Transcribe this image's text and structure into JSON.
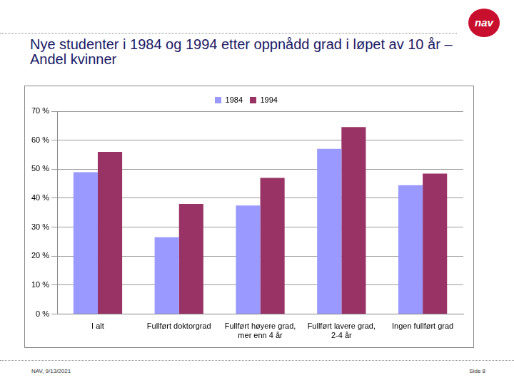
{
  "chart_data": {
    "type": "bar",
    "title": "Nye studenter i 1984 og 1994 etter oppnådd grad i løpet av 10 år – Andel kvinner",
    "categories": [
      "I alt",
      "Fullført doktorgrad",
      "Fullført høyere grad, mer enn 4 år",
      "Fullført lavere grad, 2-4 år",
      "Ingen fullført grad"
    ],
    "series": [
      {
        "name": "1984",
        "color": "#9999ff",
        "values": [
          49,
          26.5,
          37.5,
          57,
          44.5
        ]
      },
      {
        "name": "1994",
        "color": "#993366",
        "values": [
          56,
          38,
          47,
          64.5,
          48.5
        ]
      }
    ],
    "ylim": [
      0,
      70
    ],
    "yticks": [
      {
        "value": 0,
        "label": "0 %"
      },
      {
        "value": 10,
        "label": "10 %"
      },
      {
        "value": 20,
        "label": "20 %"
      },
      {
        "value": 30,
        "label": "30 %"
      },
      {
        "value": 40,
        "label": "40 %"
      },
      {
        "value": 50,
        "label": "50 %"
      },
      {
        "value": 60,
        "label": "60 %"
      },
      {
        "value": 70,
        "label": "70 %"
      }
    ],
    "grid": true,
    "legend": "top"
  },
  "slide": {
    "logo": "nav",
    "footer_left": "NAV, 9/13/2021",
    "footer_right": "Side 8"
  }
}
